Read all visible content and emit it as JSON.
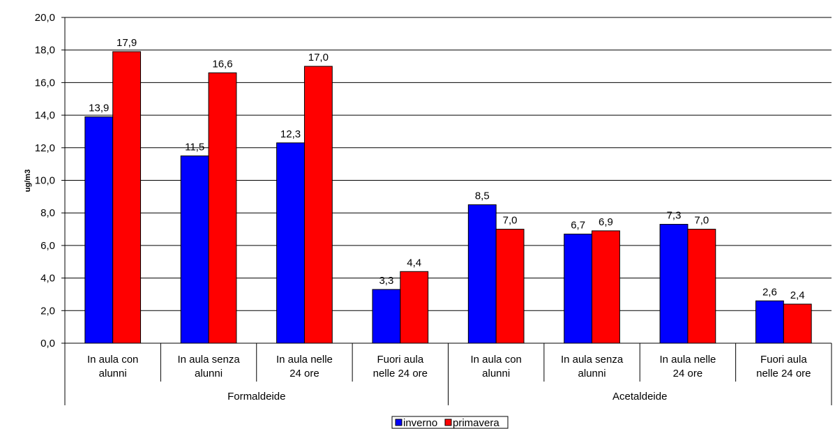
{
  "chart_data": {
    "type": "bar",
    "title": "",
    "ylabel": "ug/m3",
    "ylim": [
      0,
      20
    ],
    "ytick_step": 2,
    "ytick_labels": [
      "0,0",
      "2,0",
      "4,0",
      "6,0",
      "8,0",
      "10,0",
      "12,0",
      "14,0",
      "16,0",
      "18,0",
      "20,0"
    ],
    "grid": true,
    "legend_position": "bottom-center",
    "groups": [
      {
        "label": "Formaldeide",
        "categories": [
          [
            "In aula con",
            "alunni"
          ],
          [
            "In aula senza",
            "alunni"
          ],
          [
            "In aula nelle",
            "24 ore"
          ],
          [
            "Fuori aula",
            "nelle 24 ore"
          ]
        ]
      },
      {
        "label": "Acetaldeide",
        "categories": [
          [
            "In aula con",
            "alunni"
          ],
          [
            "In aula senza",
            "alunni"
          ],
          [
            "In aula nelle",
            "24 ore"
          ],
          [
            "Fuori aula",
            "nelle 24 ore"
          ]
        ]
      }
    ],
    "series": [
      {
        "name": "inverno",
        "color": "#0000ff",
        "values": [
          13.9,
          11.5,
          12.3,
          3.3,
          8.5,
          6.7,
          7.3,
          2.6
        ],
        "labels": [
          "13,9",
          "11,5",
          "12,3",
          "3,3",
          "8,5",
          "6,7",
          "7,3",
          "2,6"
        ]
      },
      {
        "name": "primavera",
        "color": "#ff0000",
        "values": [
          17.9,
          16.6,
          17.0,
          4.4,
          7.0,
          6.9,
          7.0,
          2.4
        ],
        "labels": [
          "17,9",
          "16,6",
          "17,0",
          "4,4",
          "7,0",
          "6,9",
          "7,0",
          "2,4"
        ]
      }
    ]
  }
}
